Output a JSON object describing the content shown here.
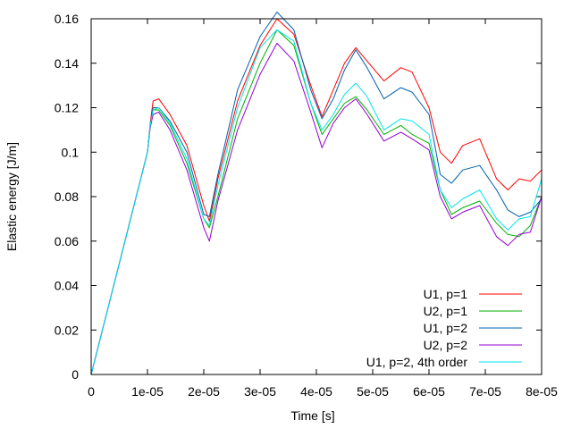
{
  "chart_data": {
    "type": "line",
    "title": "",
    "xlabel": "Time [s]",
    "ylabel": "Elastic energy [J/m]",
    "xlim": [
      0,
      8e-05
    ],
    "ylim": [
      0,
      0.16
    ],
    "x_ticks": [
      "0",
      "1e-05",
      "2e-05",
      "3e-05",
      "4e-05",
      "5e-05",
      "6e-05",
      "7e-05",
      "8e-05"
    ],
    "y_ticks": [
      "0",
      "0.02",
      "0.04",
      "0.06",
      "0.08",
      "0.1",
      "0.12",
      "0.14",
      "0.16"
    ],
    "legend_position": "bottom-right",
    "grid": false,
    "x": [
      0,
      1e-05,
      1.05e-05,
      1.1e-05,
      1.2e-05,
      1.4e-05,
      1.7e-05,
      2e-05,
      2.1e-05,
      2.25e-05,
      2.6e-05,
      3e-05,
      3.3e-05,
      3.6e-05,
      3.9e-05,
      4.1e-05,
      4.3e-05,
      4.5e-05,
      4.7e-05,
      4.9e-05,
      5.2e-05,
      5.5e-05,
      5.7e-05,
      6e-05,
      6.2e-05,
      6.4e-05,
      6.6e-05,
      6.9e-05,
      7.2e-05,
      7.4e-05,
      7.6e-05,
      7.8e-05,
      8e-05
    ],
    "series": [
      {
        "name": "U1, p=1",
        "color": "#ff0000",
        "values": [
          0,
          0.1,
          0.113,
          0.123,
          0.124,
          0.117,
          0.103,
          0.076,
          0.069,
          0.088,
          0.123,
          0.148,
          0.16,
          0.153,
          0.13,
          0.116,
          0.128,
          0.14,
          0.147,
          0.141,
          0.132,
          0.138,
          0.136,
          0.12,
          0.1,
          0.095,
          0.103,
          0.106,
          0.088,
          0.083,
          0.088,
          0.087,
          0.092
        ]
      },
      {
        "name": "U2, p=1",
        "color": "#00b000",
        "values": [
          0,
          0.1,
          0.112,
          0.119,
          0.119,
          0.112,
          0.095,
          0.07,
          0.066,
          0.08,
          0.115,
          0.14,
          0.155,
          0.148,
          0.122,
          0.108,
          0.115,
          0.122,
          0.125,
          0.119,
          0.108,
          0.112,
          0.108,
          0.104,
          0.083,
          0.072,
          0.075,
          0.078,
          0.068,
          0.063,
          0.062,
          0.067,
          0.08
        ]
      },
      {
        "name": "U1, p=2",
        "color": "#0060ad",
        "values": [
          0,
          0.1,
          0.112,
          0.12,
          0.12,
          0.114,
          0.1,
          0.072,
          0.071,
          0.09,
          0.128,
          0.152,
          0.163,
          0.155,
          0.128,
          0.115,
          0.124,
          0.137,
          0.146,
          0.138,
          0.124,
          0.129,
          0.127,
          0.117,
          0.09,
          0.086,
          0.092,
          0.094,
          0.083,
          0.074,
          0.071,
          0.073,
          0.079
        ]
      },
      {
        "name": "U2, p=2",
        "color": "#9400d3",
        "values": [
          0,
          0.1,
          0.111,
          0.117,
          0.118,
          0.11,
          0.092,
          0.066,
          0.06,
          0.078,
          0.11,
          0.135,
          0.149,
          0.141,
          0.118,
          0.102,
          0.113,
          0.12,
          0.124,
          0.117,
          0.105,
          0.109,
          0.106,
          0.101,
          0.08,
          0.07,
          0.073,
          0.076,
          0.062,
          0.058,
          0.063,
          0.064,
          0.08
        ]
      },
      {
        "name": "U1, p=2, 4th order",
        "color": "#00e5ee",
        "values": [
          0,
          0.1,
          0.112,
          0.119,
          0.12,
          0.113,
          0.097,
          0.07,
          0.067,
          0.085,
          0.12,
          0.147,
          0.155,
          0.15,
          0.122,
          0.11,
          0.117,
          0.126,
          0.131,
          0.125,
          0.11,
          0.115,
          0.114,
          0.108,
          0.083,
          0.075,
          0.079,
          0.083,
          0.07,
          0.065,
          0.07,
          0.071,
          0.088
        ]
      }
    ]
  }
}
